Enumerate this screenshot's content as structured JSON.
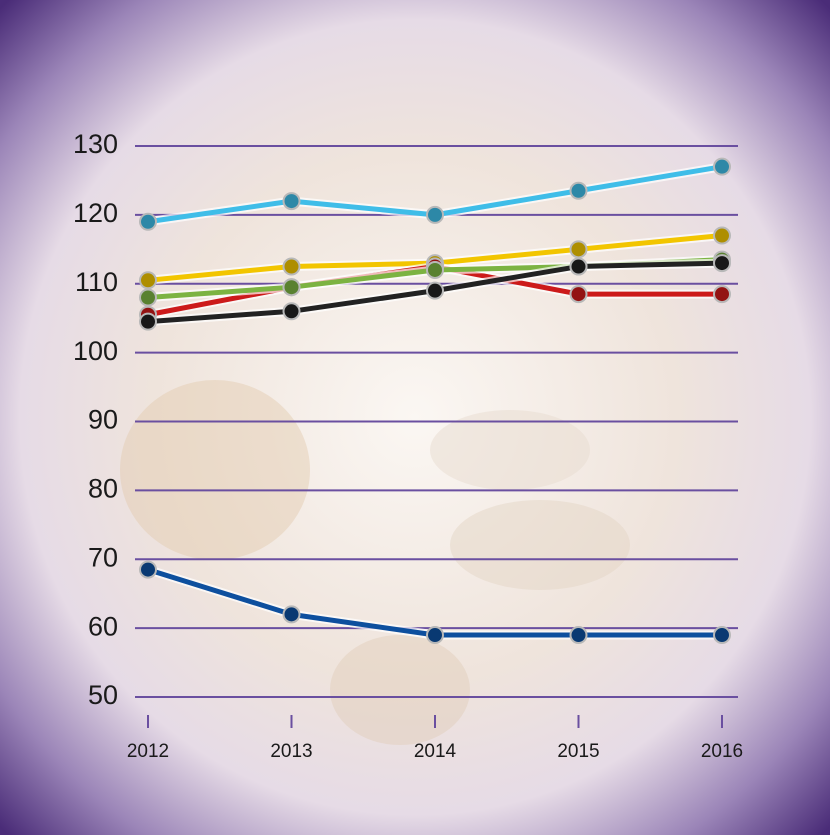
{
  "chart_data": {
    "type": "line",
    "categories": [
      "2012",
      "2013",
      "2014",
      "2015",
      "2016"
    ],
    "series": [
      {
        "color": "#f2c500",
        "values": [
          110.5,
          112.5,
          113,
          115,
          117
        ]
      },
      {
        "color": "#cc1a1a",
        "values": [
          105.5,
          109.5,
          112.5,
          108.5,
          108.5
        ]
      },
      {
        "color": "#7cb342",
        "values": [
          108,
          109.5,
          112,
          112.5,
          113.5
        ]
      },
      {
        "color": "#222222",
        "values": [
          104.5,
          106,
          109,
          112.5,
          113
        ]
      },
      {
        "color": "#3fbde8",
        "values": [
          119,
          122,
          120,
          123.5,
          127
        ]
      },
      {
        "color": "#0d4f9e",
        "values": [
          68.5,
          62,
          59,
          59,
          59
        ]
      }
    ],
    "ylim": [
      50,
      130
    ],
    "yticks": [
      50,
      60,
      70,
      80,
      90,
      100,
      110,
      120,
      130
    ],
    "grid": true
  }
}
